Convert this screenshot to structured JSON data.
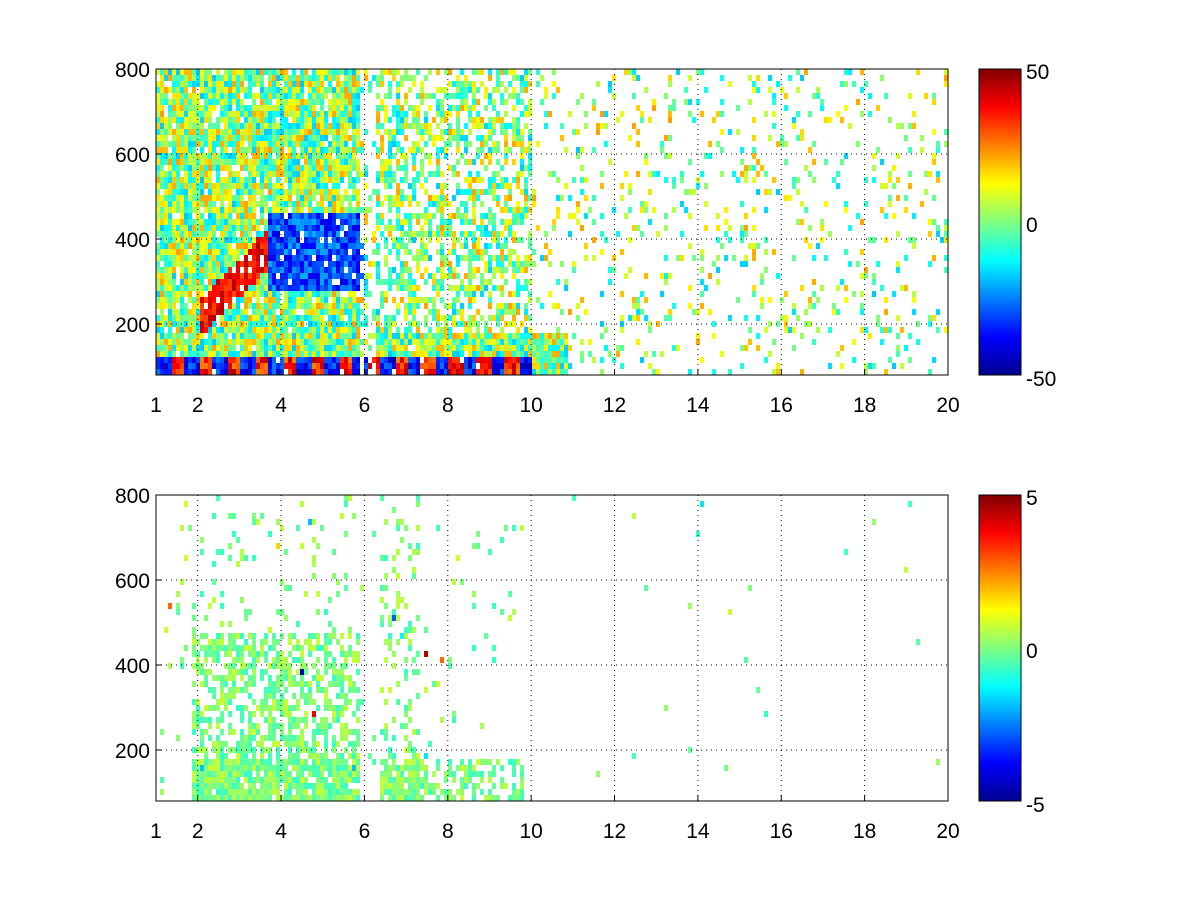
{
  "chart_data": [
    {
      "type": "heatmap",
      "title": "",
      "xlabel": "",
      "ylabel": "",
      "xlim": [
        1,
        20
      ],
      "ylim": [
        80,
        800
      ],
      "grid": true,
      "x_ticks": [
        1,
        2,
        4,
        6,
        8,
        10,
        12,
        14,
        16,
        18,
        20
      ],
      "y_ticks": [
        200,
        400,
        600,
        800
      ],
      "colorbar": {
        "min": -50,
        "max": 50,
        "ticks": [
          -50,
          0,
          50
        ],
        "colormap": "jet",
        "location": "right"
      },
      "features": [
        {
          "x": [
            2.2,
            3.8
          ],
          "y": [
            240,
            400
          ],
          "value": 35,
          "desc_value": "high ridge"
        },
        {
          "x": [
            3.6,
            5.8
          ],
          "y": [
            300,
            450
          ],
          "value": -30
        },
        {
          "x": [
            1.8,
            10.8
          ],
          "y": [
            80,
            190
          ],
          "value": 0
        }
      ]
    },
    {
      "type": "heatmap",
      "title": "",
      "xlabel": "",
      "ylabel": "",
      "xlim": [
        1,
        20
      ],
      "ylim": [
        80,
        800
      ],
      "grid": true,
      "x_ticks": [
        1,
        2,
        4,
        6,
        8,
        10,
        12,
        14,
        16,
        18,
        20
      ],
      "y_ticks": [
        200,
        400,
        600,
        800
      ],
      "colorbar": {
        "min": -5,
        "max": 5,
        "ticks": [
          -5,
          0,
          5
        ],
        "colormap": "jet",
        "location": "right"
      }
    }
  ],
  "panels": [
    {
      "x_tick_labels": [
        "1",
        "2",
        "4",
        "6",
        "8",
        "10",
        "12",
        "14",
        "16",
        "18",
        "20"
      ],
      "y_tick_labels": [
        "200",
        "400",
        "600",
        "800"
      ],
      "cbar_labels": [
        "50",
        "0",
        "-50"
      ]
    },
    {
      "x_tick_labels": [
        "1",
        "2",
        "4",
        "6",
        "8",
        "10",
        "12",
        "14",
        "16",
        "18",
        "20"
      ],
      "y_tick_labels": [
        "200",
        "400",
        "600",
        "800"
      ],
      "cbar_labels": [
        "5",
        "0",
        "-5"
      ]
    }
  ]
}
